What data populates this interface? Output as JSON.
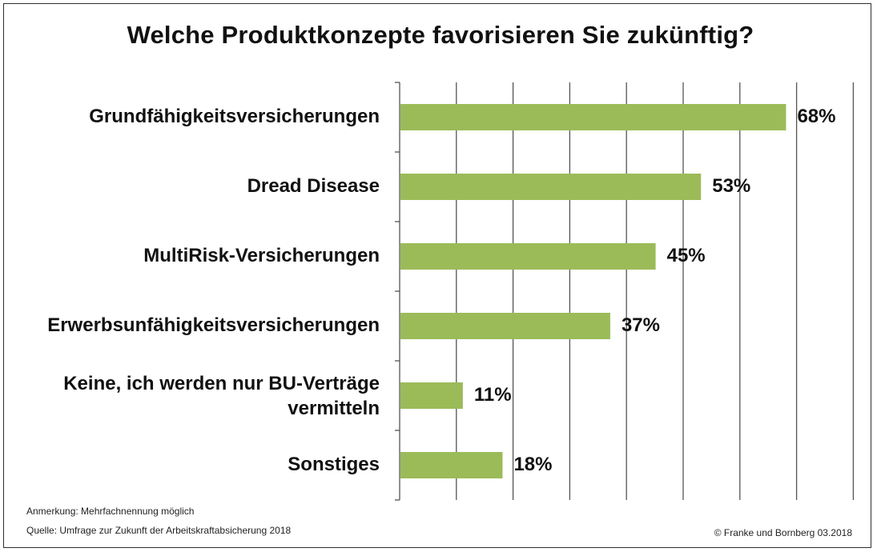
{
  "chart_data": {
    "type": "bar",
    "orientation": "horizontal",
    "title": "Welche Produktkonzepte favorisieren Sie zukünftig?",
    "categories": [
      "Grundfähigkeitsversicherungen",
      "Dread Disease",
      "MultiRisk-Versicherungen",
      "Erwerbsunfähigkeitsversicherungen",
      "Keine, ich werden nur BU-Verträge vermitteln",
      "Sonstiges"
    ],
    "values": [
      68,
      53,
      45,
      37,
      11,
      18
    ],
    "value_labels": [
      "68%",
      "53%",
      "45%",
      "37%",
      "11%",
      "18%"
    ],
    "xlim": [
      0,
      80
    ],
    "grid": true,
    "bar_color": "#9bbb59"
  },
  "notes": {
    "remark": "Anmerkung: Mehrfachnennung möglich",
    "source": "Quelle: Umfrage zur Zukunft der Arbeitskraftabsicherung 2018",
    "copyright": "© Franke und Bornberg 03.2018"
  }
}
